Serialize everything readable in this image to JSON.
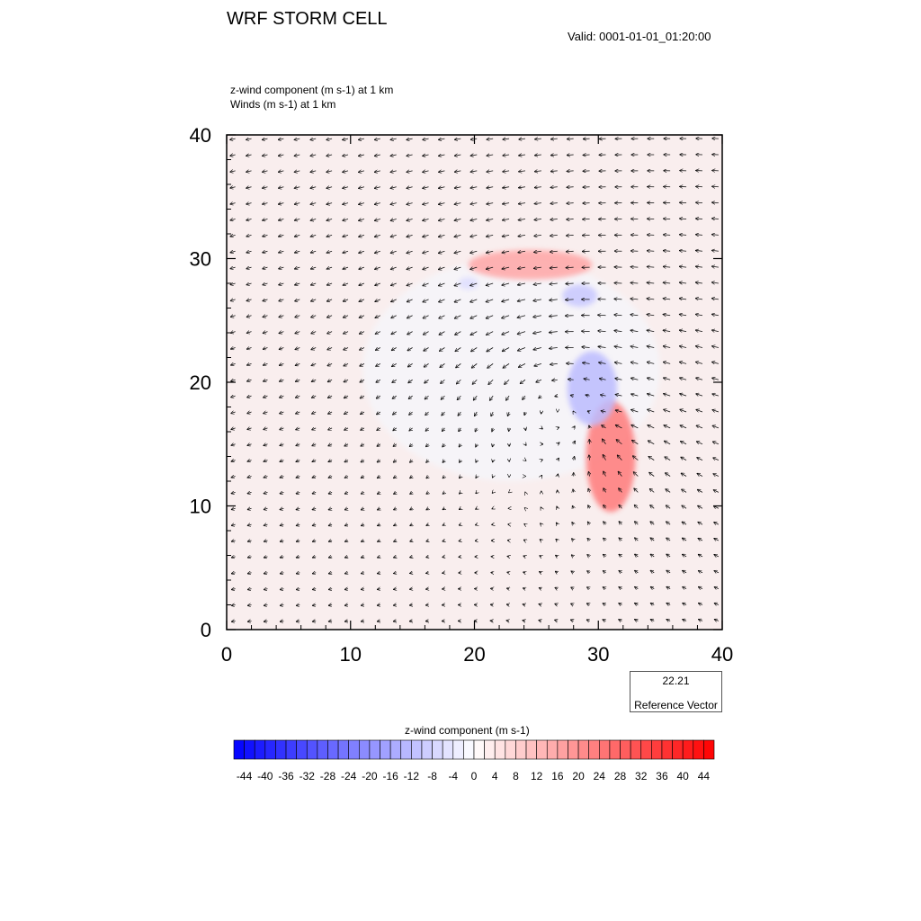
{
  "title": "WRF STORM CELL",
  "valid_time": "Valid: 0001-01-01_01:20:00",
  "subtitle_1": "z-wind component   (m s-1)     at   1 km",
  "subtitle_2": "Winds   (m s-1)     at   1 km",
  "reference_vector": {
    "value": "22.21",
    "label": "Reference Vector"
  },
  "colorbar": {
    "title": "z-wind component  (m s-1)",
    "labels": [
      "-44",
      "-40",
      "-36",
      "-32",
      "-28",
      "-24",
      "-20",
      "-16",
      "-12",
      "-8",
      "-4",
      "0",
      "4",
      "8",
      "12",
      "16",
      "20",
      "24",
      "28",
      "32",
      "36",
      "40",
      "44"
    ],
    "min": -46,
    "max": 46,
    "step": 2
  },
  "chart_data": {
    "type": "heatmap",
    "description_field": "z-wind component (m s-1) filled contours with wind vectors",
    "x_ticks": [
      "0",
      "10",
      "20",
      "30",
      "40"
    ],
    "y_ticks": [
      "0",
      "10",
      "20",
      "30",
      "40"
    ],
    "xlim": [
      0,
      40
    ],
    "ylim": [
      0,
      40
    ],
    "colorscale": "blue-white-red",
    "features": [
      {
        "kind": "updraft",
        "cx": 31,
        "cy": 14,
        "rx": 2,
        "ry": 4.5,
        "value": 12
      },
      {
        "kind": "updraft",
        "cx": 24.5,
        "cy": 29.5,
        "rx": 5,
        "ry": 1.2,
        "value": 8
      },
      {
        "kind": "downdraft",
        "cx": 29.5,
        "cy": 19.5,
        "rx": 2,
        "ry": 3,
        "value": -6
      },
      {
        "kind": "downdraft",
        "cx": 28.5,
        "cy": 27,
        "rx": 1.4,
        "ry": 0.9,
        "value": -5
      },
      {
        "kind": "downdraft",
        "cx": 19.5,
        "cy": 28,
        "rx": 0.8,
        "ry": 0.5,
        "value": -3
      }
    ],
    "vector_field": {
      "grid_spacing": 1.3,
      "reference_magnitude": 22.21,
      "environment_wind": [
        -8,
        0
      ],
      "vortex_center": [
        26,
        19
      ],
      "convergence_point": [
        30,
        16
      ]
    }
  }
}
